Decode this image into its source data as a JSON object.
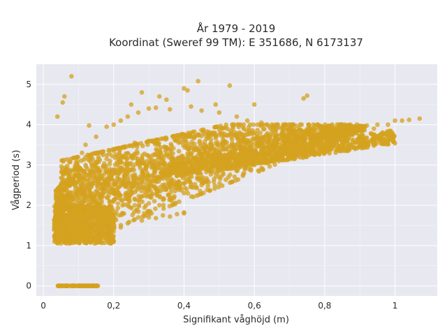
{
  "chart_data": {
    "type": "scatter",
    "title_line1": "År 1979 - 2019",
    "title_line2": "Koordinat (Sweref 99 TM): E 351686, N 6173137",
    "xlabel": "Signifikant våghöjd (m)",
    "ylabel": "Vågperiod (s)",
    "xlim": [
      -0.02,
      1.12
    ],
    "ylim": [
      -0.25,
      5.5
    ],
    "xticks": [
      0,
      0.2,
      0.4,
      0.6,
      0.8,
      1
    ],
    "xtick_labels": [
      "0",
      "0,2",
      "0,4",
      "0,6",
      "0,8",
      "1"
    ],
    "yticks": [
      0,
      1,
      2,
      3,
      4,
      5
    ],
    "ytick_labels": [
      "0",
      "1",
      "2",
      "3",
      "4",
      "5"
    ],
    "grid": true,
    "marker_color": "#d4a21f",
    "plot_background": "#e8e8f0",
    "points": [
      [
        0.08,
        5.2
      ],
      [
        0.055,
        4.55
      ],
      [
        0.06,
        4.7
      ],
      [
        0.04,
        4.2
      ],
      [
        0.25,
        4.5
      ],
      [
        0.28,
        4.8
      ],
      [
        0.33,
        4.7
      ],
      [
        0.4,
        4.9
      ],
      [
        0.41,
        4.85
      ],
      [
        0.44,
        5.08
      ],
      [
        0.53,
        4.97
      ],
      [
        0.49,
        4.5
      ],
      [
        0.6,
        4.5
      ],
      [
        0.75,
        4.72
      ],
      [
        0.74,
        4.65
      ],
      [
        0.35,
        4.62
      ],
      [
        0.38,
        1.78
      ],
      [
        0.4,
        1.8
      ],
      [
        0.4,
        1.82
      ],
      [
        0.34,
        1.75
      ],
      [
        0.36,
        1.72
      ],
      [
        0.3,
        1.7
      ],
      [
        0.28,
        1.62
      ],
      [
        0.32,
        1.68
      ],
      [
        0.9,
        3.95
      ],
      [
        0.92,
        3.98
      ],
      [
        0.95,
        4.0
      ],
      [
        0.98,
        4.0
      ],
      [
        1.0,
        4.1
      ],
      [
        1.02,
        4.1
      ],
      [
        1.04,
        4.12
      ],
      [
        1.07,
        4.15
      ],
      [
        0.94,
        3.9
      ],
      [
        0.88,
        3.85
      ],
      [
        0.85,
        3.8
      ],
      [
        0.82,
        3.75
      ],
      [
        0.8,
        3.72
      ],
      [
        0.78,
        3.65
      ],
      [
        0.76,
        3.62
      ],
      [
        0.7,
        3.55
      ],
      [
        0.13,
        3.98
      ],
      [
        0.15,
        3.7
      ],
      [
        0.12,
        3.5
      ],
      [
        0.11,
        3.3
      ],
      [
        0.18,
        3.95
      ],
      [
        0.2,
        4.0
      ],
      [
        0.22,
        4.1
      ],
      [
        0.24,
        4.2
      ],
      [
        0.27,
        4.3
      ],
      [
        0.3,
        4.4
      ],
      [
        0.32,
        4.42
      ],
      [
        0.36,
        4.38
      ],
      [
        0.42,
        4.45
      ],
      [
        0.45,
        4.35
      ],
      [
        0.5,
        4.3
      ],
      [
        0.55,
        4.2
      ],
      [
        0.58,
        4.1
      ],
      [
        0.62,
        4.05
      ],
      [
        0.65,
        4.0
      ],
      [
        0.68,
        3.95
      ],
      [
        0.06,
        2.55
      ],
      [
        0.07,
        2.6
      ],
      [
        0.05,
        2.4
      ],
      [
        0.04,
        2.2
      ],
      [
        0.09,
        2.75
      ],
      [
        0.1,
        2.85
      ],
      [
        0.12,
        3.0
      ],
      [
        0.14,
        3.15
      ],
      [
        0.17,
        3.25
      ],
      [
        0.2,
        3.35
      ],
      [
        0.23,
        3.45
      ],
      [
        0.26,
        3.55
      ],
      [
        0.3,
        3.6
      ],
      [
        0.35,
        3.65
      ],
      [
        0.4,
        3.7
      ],
      [
        0.45,
        3.72
      ],
      [
        0.5,
        3.75
      ],
      [
        0.55,
        3.78
      ],
      [
        0.6,
        3.8
      ],
      [
        0.65,
        3.82
      ],
      [
        0.04,
        1.1
      ],
      [
        0.05,
        1.05
      ],
      [
        0.06,
        1.08
      ],
      [
        0.08,
        1.1
      ],
      [
        0.1,
        1.12
      ],
      [
        0.12,
        1.15
      ],
      [
        0.14,
        1.2
      ],
      [
        0.16,
        1.25
      ],
      [
        0.18,
        1.3
      ],
      [
        0.2,
        1.35
      ],
      [
        0.22,
        1.45
      ],
      [
        0.24,
        1.55
      ],
      [
        0.26,
        1.65
      ],
      [
        0.3,
        1.85
      ],
      [
        0.33,
        2.0
      ],
      [
        0.36,
        2.15
      ],
      [
        0.4,
        2.3
      ],
      [
        0.45,
        2.5
      ],
      [
        0.5,
        2.7
      ],
      [
        0.55,
        2.85
      ],
      [
        0.6,
        3.0
      ],
      [
        0.65,
        3.1
      ],
      [
        0.7,
        3.2
      ],
      [
        0.75,
        3.35
      ],
      [
        0.8,
        3.45
      ],
      [
        0.85,
        3.55
      ],
      [
        0.9,
        3.65
      ]
    ]
  }
}
